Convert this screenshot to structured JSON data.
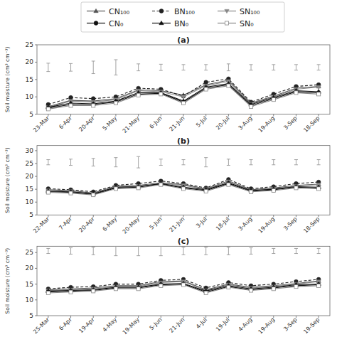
{
  "chart_data": [
    {
      "type": "line",
      "title": "(a)",
      "ylabel": "Soil moisture (cm³ cm⁻³)",
      "categories": [
        "23-Mar",
        "6-Apr",
        "20-Apr",
        "5-May",
        "21-May",
        "6-Jun",
        "21-Jun",
        "5-Jul",
        "20-Jul",
        "3-Aug",
        "19-Aug",
        "3-Sep",
        "18-Sep"
      ],
      "ylim": [
        5,
        25
      ],
      "yticks": [
        5,
        10,
        15,
        20,
        25
      ],
      "grid": false,
      "legend": "top",
      "series": [
        {
          "name": "CN₁₀₀",
          "color": "#555555",
          "marker": "triangle-up",
          "line_style": "solid",
          "values": [
            7.2,
            9.0,
            8.8,
            9.5,
            12.0,
            11.8,
            10.5,
            13.5,
            14.8,
            8.2,
            10.2,
            12.5,
            13.0
          ]
        },
        {
          "name": "BN₁₀₀",
          "color": "#222222",
          "marker": "circle",
          "line_style": "dashed",
          "values": [
            7.8,
            9.8,
            9.5,
            10.0,
            12.5,
            12.2,
            10.2,
            14.2,
            15.2,
            8.5,
            10.8,
            13.0,
            13.5
          ]
        },
        {
          "name": "SN₁₀₀",
          "color": "#888888",
          "marker": "triangle-down",
          "line_style": "solid",
          "values": [
            7.0,
            8.8,
            8.5,
            9.2,
            11.8,
            11.5,
            10.0,
            13.2,
            14.5,
            8.0,
            10.0,
            12.2,
            12.8
          ]
        },
        {
          "name": "CN₀",
          "color": "#111111",
          "marker": "circle",
          "line_style": "solid",
          "values": [
            6.8,
            7.8,
            7.8,
            8.5,
            10.8,
            11.0,
            8.5,
            12.5,
            13.5,
            7.5,
            9.5,
            11.5,
            11.2
          ]
        },
        {
          "name": "BN₀",
          "color": "#111111",
          "marker": "triangle-up",
          "line_style": "solid",
          "values": [
            7.0,
            8.2,
            8.0,
            8.8,
            11.2,
            11.2,
            8.8,
            12.8,
            13.8,
            7.8,
            9.8,
            11.8,
            11.5
          ]
        },
        {
          "name": "SN₀",
          "color": "#888888",
          "marker": "square-open",
          "line_style": "solid",
          "values": [
            6.5,
            7.5,
            7.5,
            8.2,
            10.5,
            10.8,
            8.2,
            12.2,
            13.2,
            7.2,
            9.2,
            11.2,
            10.8
          ]
        }
      ],
      "error_y": 18.5,
      "error_bars": [
        1.2,
        1.1,
        1.8,
        2.2,
        1.0,
        0.9,
        0.8,
        0.8,
        1.0,
        0.8,
        0.8,
        0.8,
        0.8
      ]
    },
    {
      "type": "line",
      "title": "(b)",
      "ylabel": "Soil moisture (cm³ cm⁻³)",
      "categories": [
        "22-Mar",
        "7-Apr",
        "20-Apr",
        "6-May",
        "20-May",
        "5-Jun",
        "21-Jun",
        "3-Jul",
        "18-Jul",
        "3-Aug",
        "19-Aug",
        "3-Sep",
        "18-Sep"
      ],
      "ylim": [
        5,
        32
      ],
      "yticks": [
        5,
        10,
        15,
        20,
        25,
        30
      ],
      "grid": false,
      "series": [
        {
          "name": "CN₁₀₀",
          "color": "#555555",
          "marker": "triangle-up",
          "line_style": "solid",
          "values": [
            14.8,
            14.5,
            13.5,
            16.2,
            16.5,
            17.5,
            16.8,
            15.2,
            18.2,
            14.8,
            15.5,
            16.5,
            17.0
          ]
        },
        {
          "name": "BN₁₀₀",
          "color": "#222222",
          "marker": "circle",
          "line_style": "dashed",
          "values": [
            15.2,
            14.8,
            14.0,
            16.5,
            17.2,
            18.2,
            17.2,
            15.5,
            18.8,
            15.2,
            16.0,
            17.2,
            17.8
          ]
        },
        {
          "name": "SN₁₀₀",
          "color": "#888888",
          "marker": "triangle-down",
          "line_style": "solid",
          "values": [
            14.5,
            14.2,
            13.2,
            15.8,
            16.2,
            17.2,
            16.5,
            15.0,
            18.0,
            14.5,
            15.2,
            16.2,
            16.8
          ]
        },
        {
          "name": "CN₀",
          "color": "#111111",
          "marker": "circle",
          "line_style": "solid",
          "values": [
            14.0,
            13.8,
            13.0,
            15.5,
            15.8,
            17.0,
            15.5,
            14.5,
            17.2,
            14.2,
            14.8,
            15.8,
            15.5
          ]
        },
        {
          "name": "BN₀",
          "color": "#111111",
          "marker": "triangle-up",
          "line_style": "solid",
          "values": [
            14.2,
            14.0,
            13.2,
            15.8,
            16.0,
            17.2,
            15.8,
            14.8,
            17.5,
            14.5,
            15.0,
            16.0,
            15.8
          ]
        },
        {
          "name": "SN₀",
          "color": "#888888",
          "marker": "square-open",
          "line_style": "solid",
          "values": [
            13.8,
            13.5,
            12.8,
            15.2,
            15.5,
            16.8,
            15.2,
            14.2,
            16.8,
            14.0,
            14.5,
            15.5,
            15.2
          ]
        }
      ],
      "error_y": 25.5,
      "error_bars": [
        1.0,
        1.2,
        1.5,
        1.8,
        2.2,
        1.2,
        1.0,
        1.8,
        1.2,
        1.0,
        1.0,
        1.0,
        1.0
      ]
    },
    {
      "type": "line",
      "title": "(c)",
      "ylabel": "Soil moisture (cm³ cm⁻³)",
      "categories": [
        "25-Mar",
        "6-Apr",
        "19-Apr",
        "4-May",
        "19-May",
        "5-Jun",
        "21-Jun",
        "4-Jul",
        "19-Jul",
        "4-Aug",
        "19-Aug",
        "3-Sep",
        "19-Sep"
      ],
      "ylim": [
        5,
        27
      ],
      "yticks": [
        5,
        10,
        15,
        20,
        25
      ],
      "grid": false,
      "series": [
        {
          "name": "CN₁₀₀",
          "color": "#555555",
          "marker": "triangle-up",
          "line_style": "solid",
          "values": [
            13.2,
            13.5,
            13.8,
            14.5,
            14.5,
            15.8,
            16.0,
            13.2,
            15.0,
            14.0,
            14.5,
            15.2,
            16.0
          ]
        },
        {
          "name": "BN₁₀₀",
          "color": "#222222",
          "marker": "circle",
          "line_style": "dashed",
          "values": [
            13.5,
            14.0,
            14.2,
            15.0,
            15.0,
            16.2,
            16.5,
            13.8,
            15.5,
            14.5,
            15.0,
            15.8,
            16.5
          ]
        },
        {
          "name": "SN₁₀₀",
          "color": "#888888",
          "marker": "triangle-down",
          "line_style": "solid",
          "values": [
            13.0,
            13.2,
            13.5,
            14.2,
            14.2,
            15.5,
            15.8,
            13.0,
            14.8,
            13.8,
            14.2,
            15.0,
            15.8
          ]
        },
        {
          "name": "CN₀",
          "color": "#111111",
          "marker": "circle",
          "line_style": "solid",
          "values": [
            12.5,
            12.8,
            13.0,
            13.8,
            13.8,
            14.8,
            15.0,
            12.5,
            14.2,
            13.2,
            13.8,
            14.5,
            14.8
          ]
        },
        {
          "name": "BN₀",
          "color": "#111111",
          "marker": "triangle-up",
          "line_style": "solid",
          "values": [
            12.8,
            13.0,
            13.2,
            14.0,
            14.0,
            15.0,
            15.2,
            12.8,
            14.5,
            13.5,
            14.0,
            14.8,
            15.0
          ]
        },
        {
          "name": "SN₀",
          "color": "#888888",
          "marker": "square-open",
          "line_style": "solid",
          "values": [
            12.2,
            12.5,
            12.8,
            13.5,
            13.5,
            14.5,
            14.8,
            12.2,
            14.0,
            13.0,
            13.5,
            14.2,
            14.5
          ]
        }
      ],
      "error_y": 25.5,
      "error_bars": [
        0.8,
        1.0,
        1.2,
        1.5,
        1.5,
        1.5,
        1.2,
        1.2,
        1.2,
        1.0,
        0.8,
        0.8,
        0.8
      ]
    }
  ]
}
